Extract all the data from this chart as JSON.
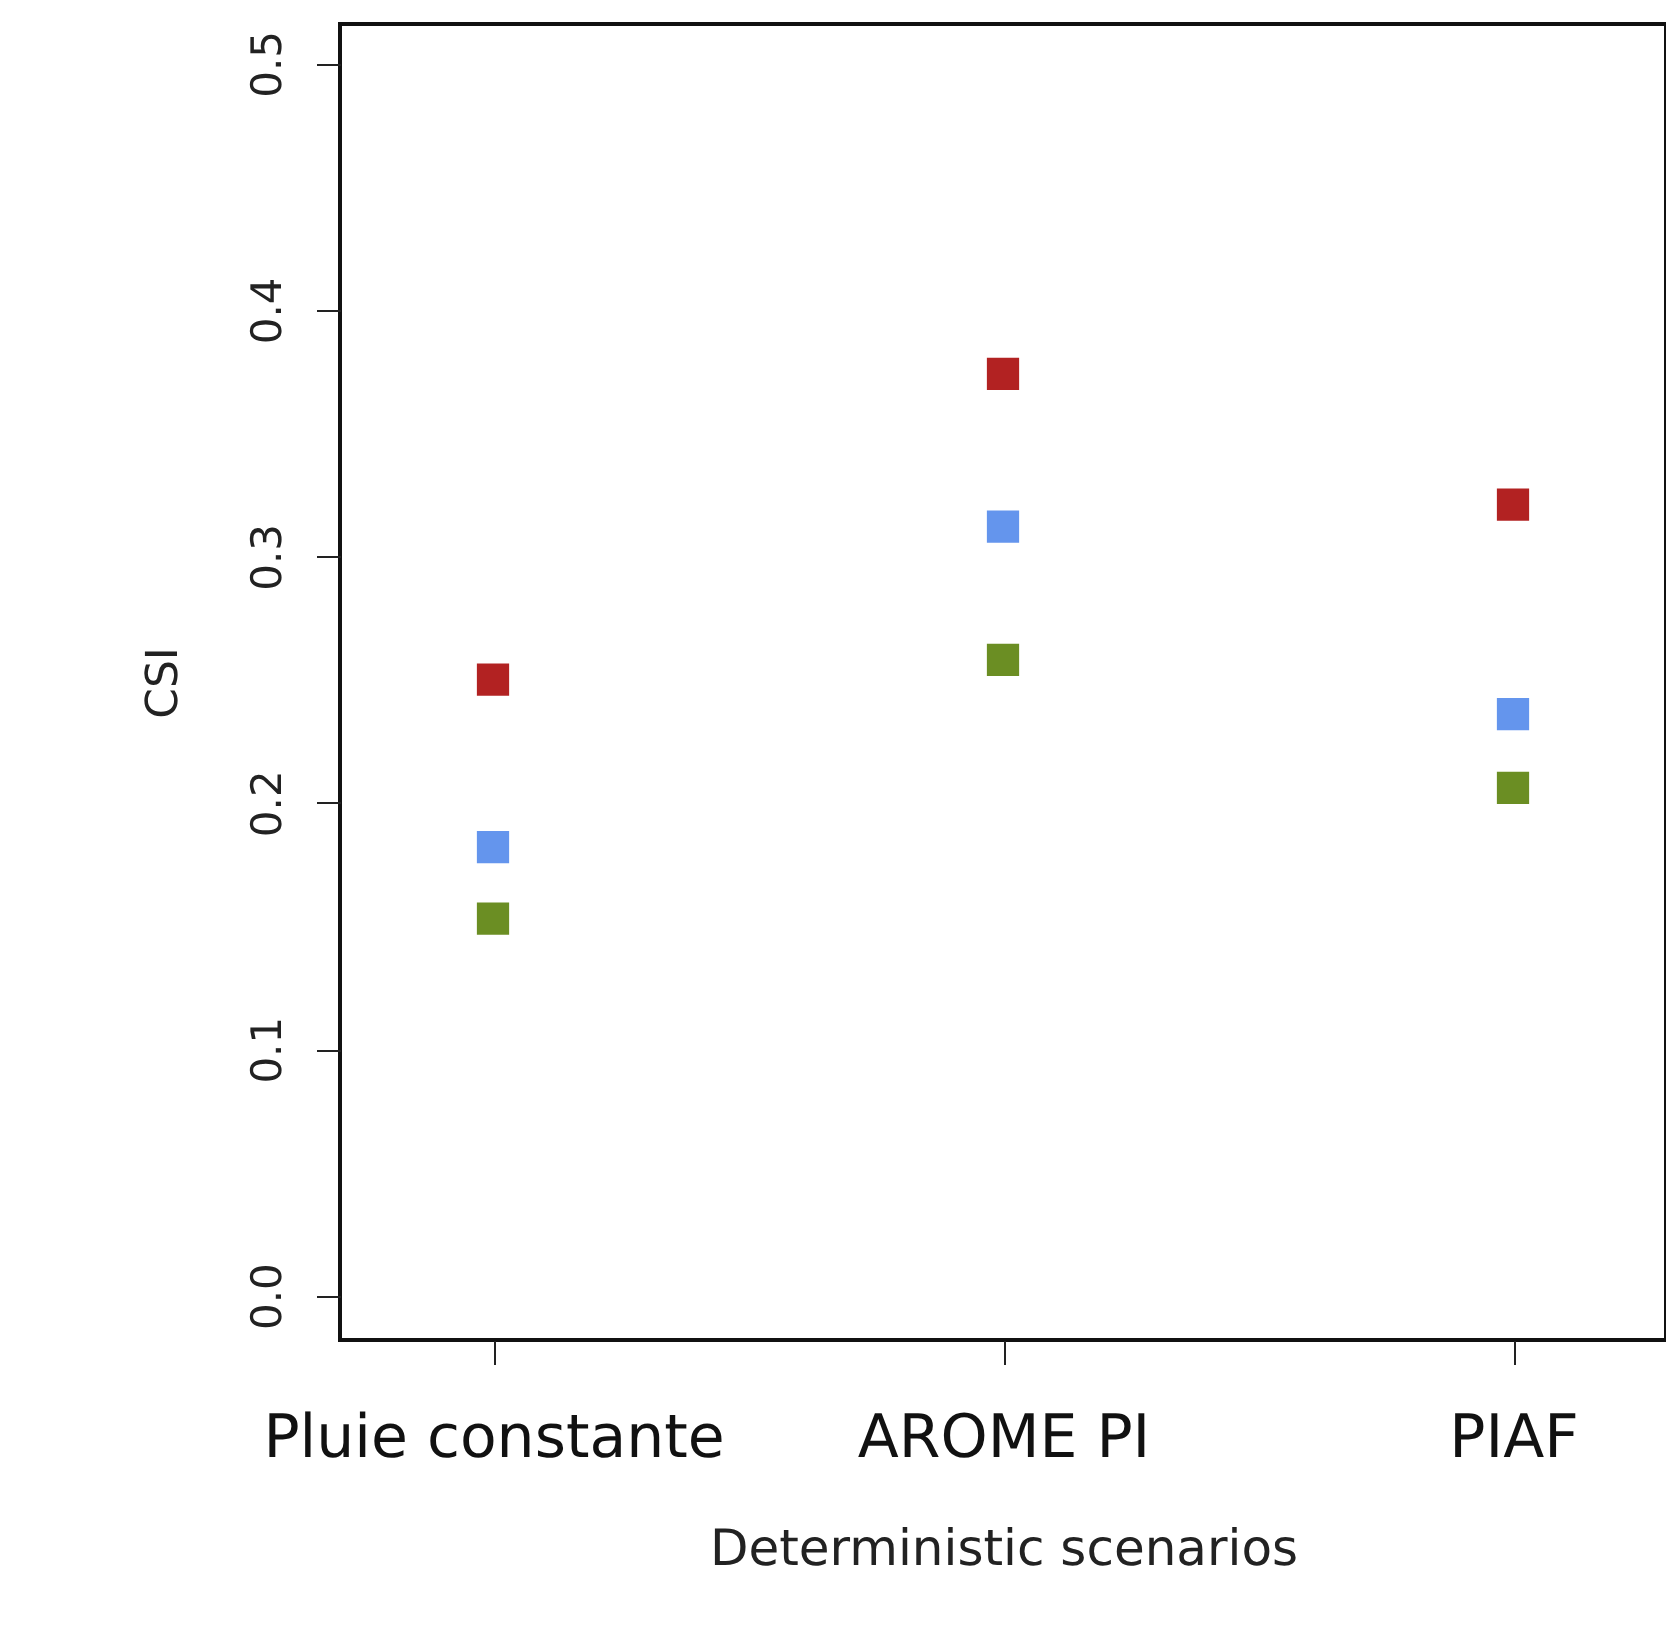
{
  "chart_data": {
    "type": "scatter",
    "xlabel": "Deterministic scenarios",
    "ylabel": "CSI",
    "categories": [
      "Pluie constante",
      "AROME PI",
      "PIAF"
    ],
    "series": [
      {
        "color": "#b22222",
        "values": [
          0.25,
          0.374,
          0.321
        ]
      },
      {
        "color": "#6495ed",
        "values": [
          0.182,
          0.312,
          0.236
        ]
      },
      {
        "color": "#6b8e23",
        "values": [
          0.153,
          0.258,
          0.206
        ]
      }
    ],
    "ylim": [
      -0.018,
      0.516
    ],
    "yticks": [
      {
        "value": 0,
        "label": "0.0"
      },
      {
        "value": 0.1,
        "label": "0.1"
      },
      {
        "value": 0.2,
        "label": "0.2"
      },
      {
        "value": 0.3,
        "label": "0.3"
      },
      {
        "value": 0.4,
        "label": "0.4"
      },
      {
        "value": 0.5,
        "label": "0.5"
      }
    ],
    "grid": false,
    "marker": "square"
  }
}
